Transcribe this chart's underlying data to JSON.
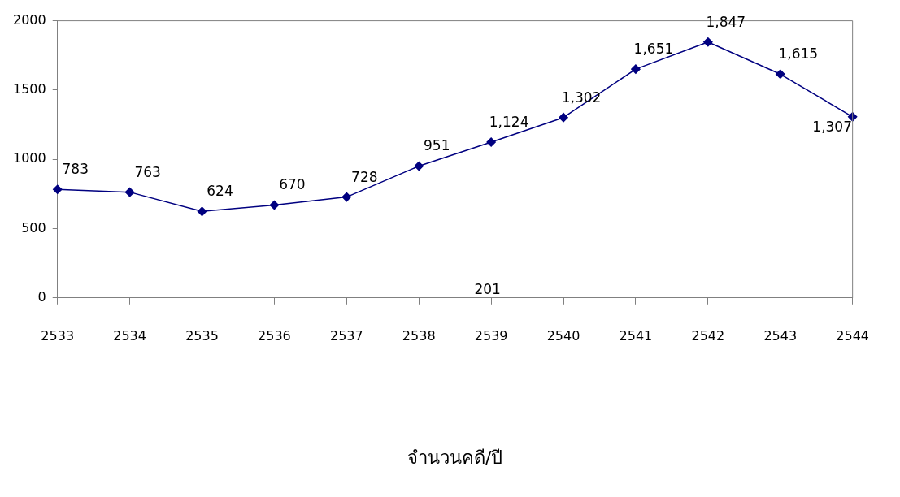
{
  "chart_data": {
    "type": "line",
    "title": "จำนวนคดี/ปี",
    "categories": [
      "2533",
      "2534",
      "2535",
      "2536",
      "2537",
      "2538",
      "2539",
      "2540",
      "2541",
      "2542",
      "2543",
      "2544"
    ],
    "series": [
      {
        "color": "#000080",
        "values": [
          783,
          763,
          624,
          670,
          728,
          951,
          1124,
          1302,
          1651,
          1847,
          1615,
          1307
        ],
        "value_labels": [
          "783",
          "763",
          "624",
          "670",
          "728",
          "951",
          "1,124",
          "1,302",
          "1,651",
          "1,847",
          "1,615",
          "1,307"
        ]
      }
    ],
    "ylim": [
      0,
      2000
    ],
    "yticks": [
      0,
      500,
      1000,
      1500,
      2000
    ],
    "marker": "diamond",
    "annotations": [
      "201"
    ]
  }
}
